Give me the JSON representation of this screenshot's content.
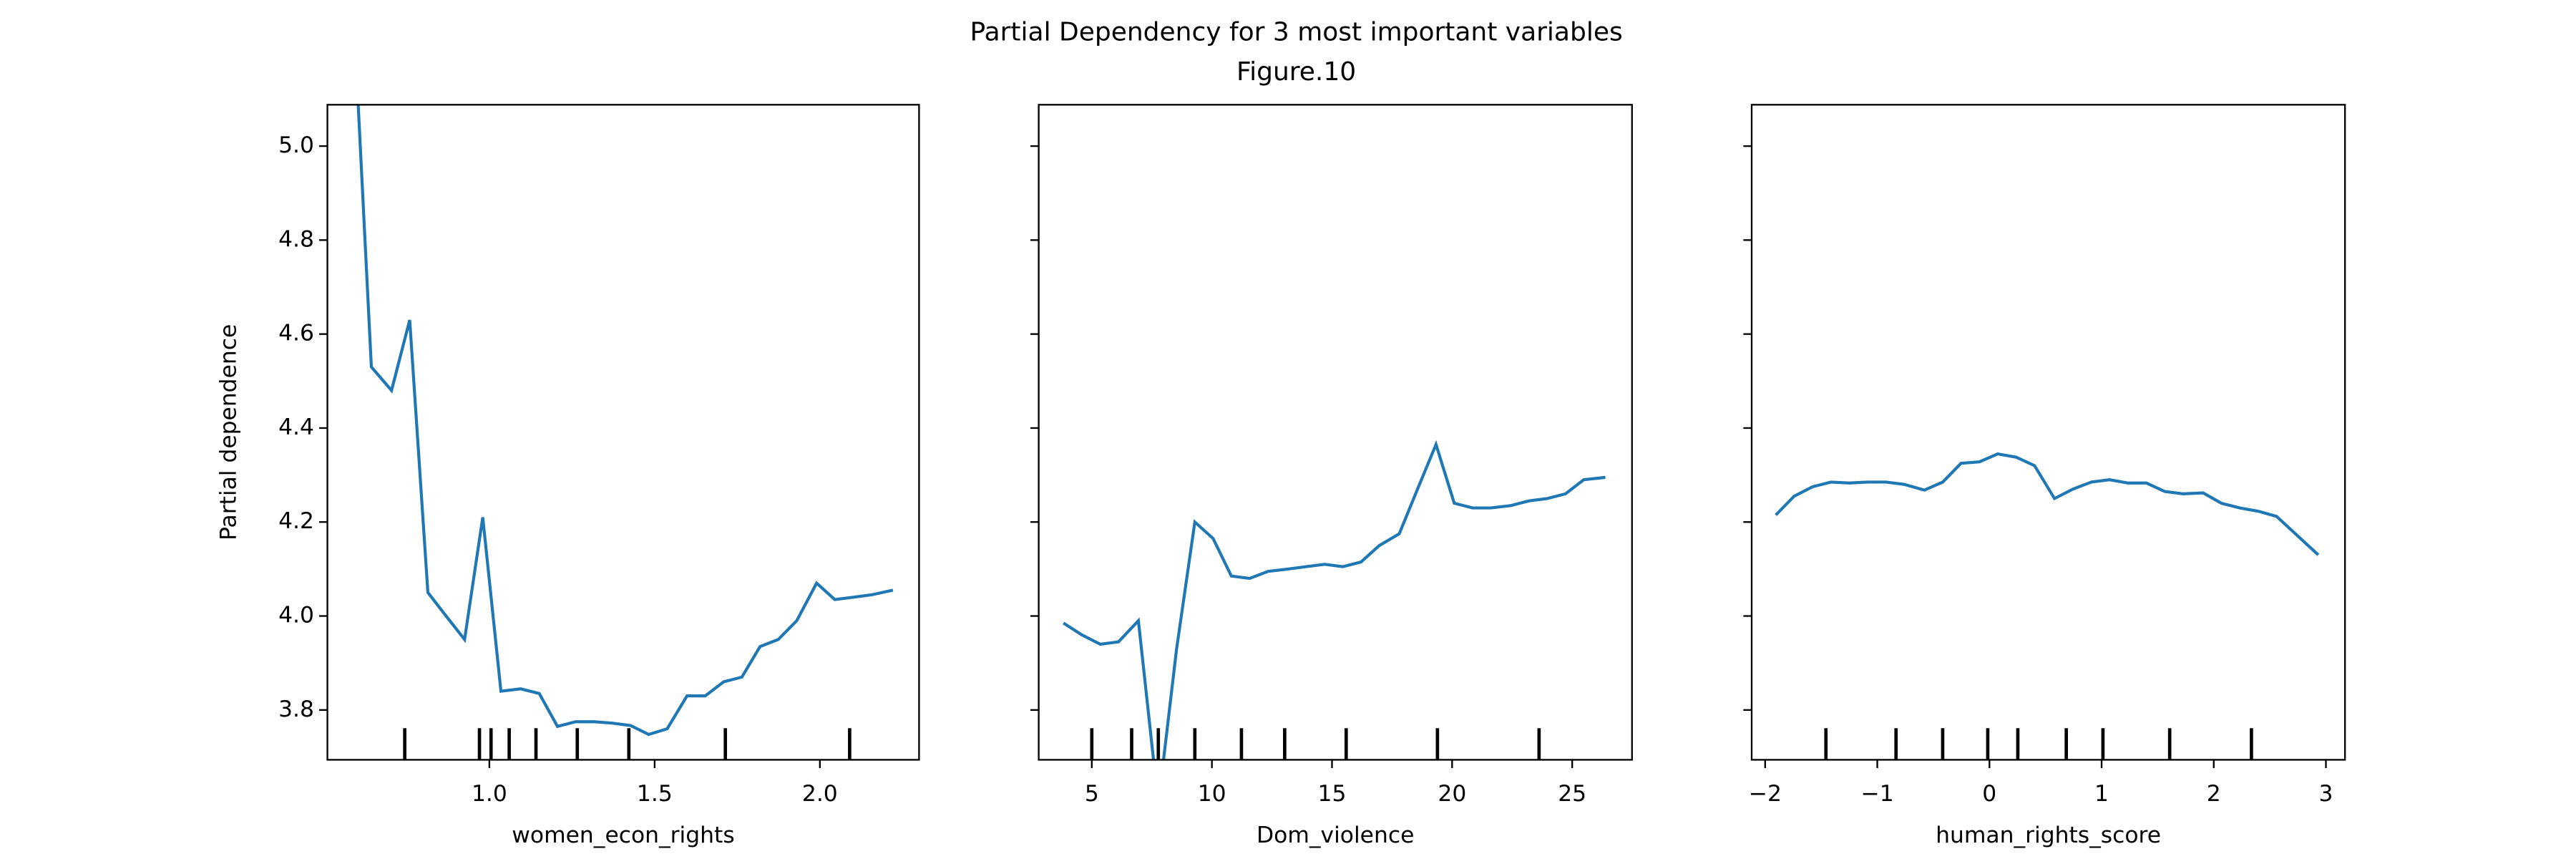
{
  "title": "Partial Dependency for 3 most important variables",
  "subtitle": "Figure.10",
  "chart_data": [
    {
      "type": "line",
      "xlabel": "women_econ_rights",
      "ylabel": "Partial dependence",
      "color": "#1f77b4",
      "ytick_labels": true,
      "x": [
        0.588,
        0.643,
        0.704,
        0.759,
        0.814,
        0.869,
        0.925,
        0.98,
        1.035,
        1.095,
        1.151,
        1.206,
        1.261,
        1.317,
        1.372,
        1.427,
        1.482,
        1.538,
        1.598,
        1.653,
        1.709,
        1.764,
        1.819,
        1.874,
        1.93,
        1.99,
        2.045,
        2.101,
        2.156,
        2.221
      ],
      "values": [
        5.3,
        4.53,
        4.48,
        4.63,
        4.05,
        4.0,
        3.95,
        4.21,
        3.84,
        3.845,
        3.835,
        3.765,
        3.775,
        3.775,
        3.772,
        3.767,
        3.748,
        3.76,
        3.83,
        3.83,
        3.86,
        3.87,
        3.935,
        3.95,
        3.99,
        4.07,
        4.035,
        4.04,
        4.045,
        4.055
      ],
      "deciles": [
        0.744,
        0.97,
        1.005,
        1.06,
        1.141,
        1.266,
        1.422,
        1.714,
        2.09
      ],
      "xlim": [
        0.51,
        2.3
      ],
      "xticks": [
        {
          "value": 1,
          "label": "1.0"
        },
        1.5,
        {
          "value": 2,
          "label": "2.0"
        }
      ],
      "ylim": [
        3.694,
        5.088
      ],
      "yticks": [
        3.8,
        {
          "value": 4,
          "label": "4.0"
        },
        4.2,
        4.4,
        4.6,
        4.8,
        {
          "value": 5,
          "label": "5.0"
        }
      ]
    },
    {
      "type": "line",
      "xlabel": "Dom_violence",
      "color": "#1f77b4",
      "ytick_labels": false,
      "x": [
        3.82,
        4.58,
        5.35,
        6.11,
        6.94,
        7.77,
        8.53,
        9.29,
        10.05,
        10.81,
        11.57,
        12.34,
        13.17,
        13.93,
        14.69,
        15.45,
        16.21,
        16.97,
        17.8,
        18.56,
        19.33,
        20.09,
        20.85,
        21.61,
        22.44,
        23.2,
        23.96,
        24.72,
        25.48,
        26.38
      ],
      "values": [
        3.985,
        3.96,
        3.94,
        3.945,
        3.99,
        3.6,
        3.93,
        4.2,
        4.165,
        4.085,
        4.08,
        4.095,
        4.1,
        4.105,
        4.11,
        4.105,
        4.115,
        4.15,
        4.175,
        4.27,
        4.365,
        4.24,
        4.23,
        4.23,
        4.235,
        4.245,
        4.25,
        4.26,
        4.29,
        4.295
      ],
      "deciles": [
        5.0,
        6.66,
        7.77,
        9.29,
        11.23,
        13.03,
        15.59,
        19.39,
        23.62
      ],
      "xlim": [
        2.79,
        27.49
      ],
      "xticks": [
        5,
        10,
        15,
        20,
        25
      ],
      "ylim": [
        3.694,
        5.088
      ],
      "yticks": [
        3.8,
        4,
        4.2,
        4.4,
        4.6,
        4.8,
        5
      ]
    },
    {
      "type": "line",
      "xlabel": "human_rights_score",
      "color": "#1f77b4",
      "ytick_labels": false,
      "x": [
        -1.905,
        -1.741,
        -1.577,
        -1.414,
        -1.25,
        -1.086,
        -0.923,
        -0.759,
        -0.58,
        -0.417,
        -0.253,
        -0.089,
        0.074,
        0.238,
        0.402,
        0.58,
        0.744,
        0.908,
        1.071,
        1.235,
        1.399,
        1.563,
        1.726,
        1.905,
        2.068,
        2.232,
        2.396,
        2.56,
        2.932
      ],
      "values": [
        4.215,
        4.255,
        4.275,
        4.285,
        4.283,
        4.285,
        4.285,
        4.28,
        4.268,
        4.285,
        4.325,
        4.328,
        4.345,
        4.338,
        4.32,
        4.25,
        4.27,
        4.285,
        4.29,
        4.283,
        4.283,
        4.265,
        4.26,
        4.262,
        4.24,
        4.23,
        4.223,
        4.212,
        4.13
      ],
      "deciles": [
        -1.458,
        -0.833,
        -0.417,
        -0.015,
        0.253,
        0.685,
        1.012,
        1.607,
        2.336
      ],
      "xlim": [
        -2.12,
        3.17
      ],
      "xticks": [
        {
          "value": -2,
          "label": "−2"
        },
        {
          "value": -1,
          "label": "−1"
        },
        0,
        1,
        2,
        3
      ],
      "ylim": [
        3.694,
        5.088
      ],
      "yticks": [
        3.8,
        4,
        4.2,
        4.4,
        4.6,
        4.8,
        5
      ]
    }
  ]
}
